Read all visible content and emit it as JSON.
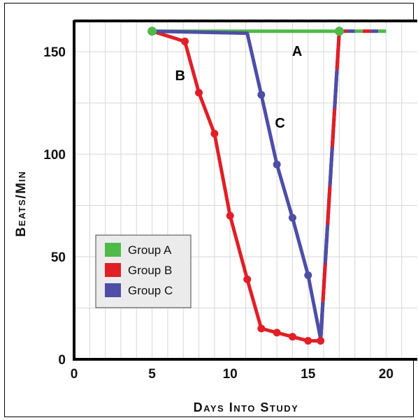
{
  "chart_data": {
    "type": "line",
    "title": "",
    "xlabel": "Days Into Study",
    "ylabel": "Beats/Min",
    "xlim": [
      0,
      22
    ],
    "ylim": [
      0,
      165
    ],
    "xticks": [
      0,
      5,
      10,
      15,
      20
    ],
    "yticks": [
      0,
      50,
      100,
      150
    ],
    "grid": true,
    "legend_position": "bottom-left",
    "series": [
      {
        "name": "Group A",
        "label": "A",
        "color": "#4fba48",
        "points": [
          [
            5,
            160
          ],
          [
            17,
            160
          ]
        ],
        "marker_points": [
          [
            5,
            160
          ],
          [
            17,
            160
          ]
        ],
        "extension": [
          [
            17,
            160
          ],
          [
            20,
            160
          ]
        ]
      },
      {
        "name": "Group B",
        "label": "B",
        "color": "#e11f26",
        "points": [
          [
            5,
            160
          ],
          [
            7.1,
            155
          ],
          [
            8,
            130
          ],
          [
            9,
            110
          ],
          [
            10,
            70
          ],
          [
            11.1,
            39
          ],
          [
            12,
            15
          ],
          [
            13,
            13
          ],
          [
            14,
            11
          ],
          [
            15,
            9
          ],
          [
            15.8,
            9
          ],
          [
            17,
            160
          ]
        ],
        "marker_points": [
          [
            7.1,
            155
          ],
          [
            8,
            130
          ],
          [
            9,
            110
          ],
          [
            10,
            70
          ],
          [
            11.1,
            39
          ],
          [
            12,
            15
          ],
          [
            13,
            13
          ],
          [
            14,
            11
          ],
          [
            15,
            9
          ],
          [
            15.8,
            9
          ]
        ],
        "extension": [
          [
            17,
            160
          ],
          [
            20,
            160
          ]
        ]
      },
      {
        "name": "Group C",
        "label": "C",
        "color": "#4e4ea7",
        "points": [
          [
            5,
            160
          ],
          [
            11.1,
            159
          ],
          [
            12,
            129
          ],
          [
            13,
            95
          ],
          [
            14,
            69
          ],
          [
            15,
            41
          ],
          [
            15.8,
            10
          ],
          [
            17,
            160
          ]
        ],
        "marker_points": [
          [
            12,
            129
          ],
          [
            13,
            95
          ],
          [
            14,
            69
          ],
          [
            15,
            41
          ]
        ],
        "extension": [
          [
            17,
            160
          ],
          [
            20,
            160
          ]
        ]
      }
    ]
  }
}
